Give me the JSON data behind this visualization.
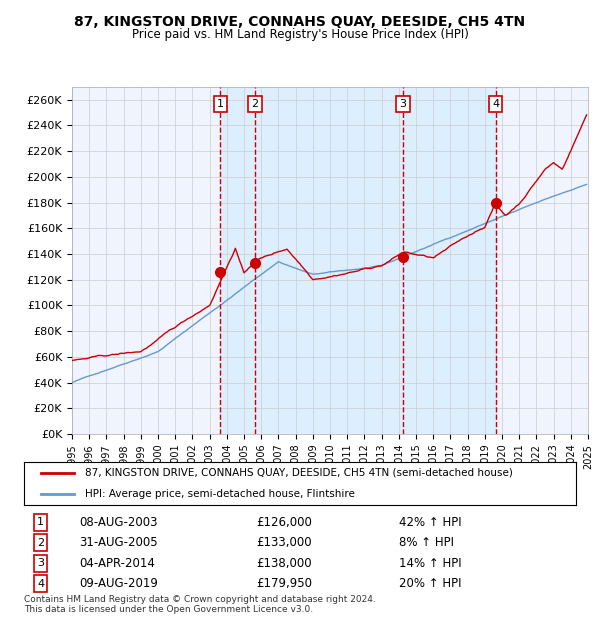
{
  "title_line1": "87, KINGSTON DRIVE, CONNAHS QUAY, DEESIDE, CH5 4TN",
  "title_line2": "Price paid vs. HM Land Registry's House Price Index (HPI)",
  "legend_line1": "87, KINGSTON DRIVE, CONNAHS QUAY, DEESIDE, CH5 4TN (semi-detached house)",
  "legend_line2": "HPI: Average price, semi-detached house, Flintshire",
  "footer_line1": "Contains HM Land Registry data © Crown copyright and database right 2024.",
  "footer_line2": "This data is licensed under the Open Government Licence v3.0.",
  "sale_dates": [
    "2003-08-08",
    "2005-08-31",
    "2014-04-04",
    "2019-08-09"
  ],
  "sale_prices": [
    126000,
    133000,
    138000,
    179950
  ],
  "sale_labels": [
    "1",
    "2",
    "3",
    "4"
  ],
  "sale_info": [
    "08-AUG-2003    £126,000    42% ↑ HPI",
    "31-AUG-2005    £133,000      8% ↑ HPI",
    "04-APR-2014    £138,000    14% ↑ HPI",
    "09-AUG-2019    £179,950    20% ↑ HPI"
  ],
  "hpi_color": "#6699cc",
  "price_color": "#cc0000",
  "dot_color": "#cc0000",
  "vline_color": "#cc0000",
  "shade_color": "#ddeeff",
  "bg_color": "#f0f4ff",
  "grid_color": "#cccccc",
  "ylim": [
    0,
    270000
  ],
  "yticks": [
    0,
    20000,
    40000,
    60000,
    80000,
    100000,
    120000,
    140000,
    160000,
    180000,
    200000,
    220000,
    240000,
    260000
  ],
  "xstart": 1995,
  "xend": 2025
}
